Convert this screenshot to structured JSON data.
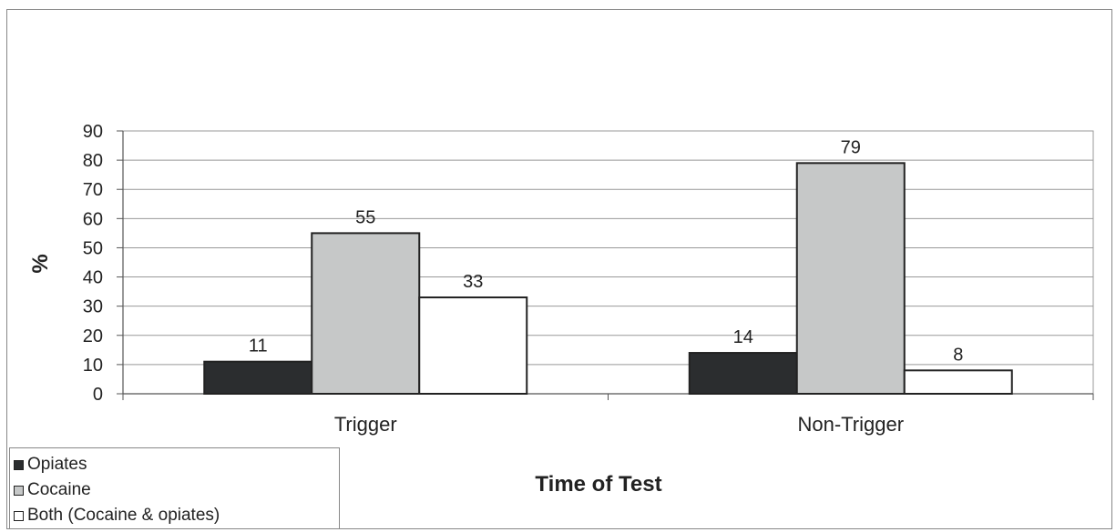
{
  "chart_data": {
    "type": "bar",
    "categories": [
      "Trigger",
      "Non-Trigger"
    ],
    "series": [
      {
        "name": "Opiates",
        "values": [
          11,
          14
        ],
        "color": "#2b2d2f"
      },
      {
        "name": "Cocaine",
        "values": [
          55,
          79
        ],
        "color": "#c6c8c8"
      },
      {
        "name": "Both (Cocaine & opiates)",
        "values": [
          33,
          8
        ],
        "color": "#ffffff"
      }
    ],
    "ylim": [
      0,
      90
    ],
    "yticks": [
      "0",
      "10",
      "20",
      "30",
      "40",
      "50",
      "60",
      "70",
      "80",
      "90"
    ],
    "xlabel": "Time of Test",
    "ylabel": "%",
    "grid": true,
    "legend_position": "bottom-left"
  }
}
